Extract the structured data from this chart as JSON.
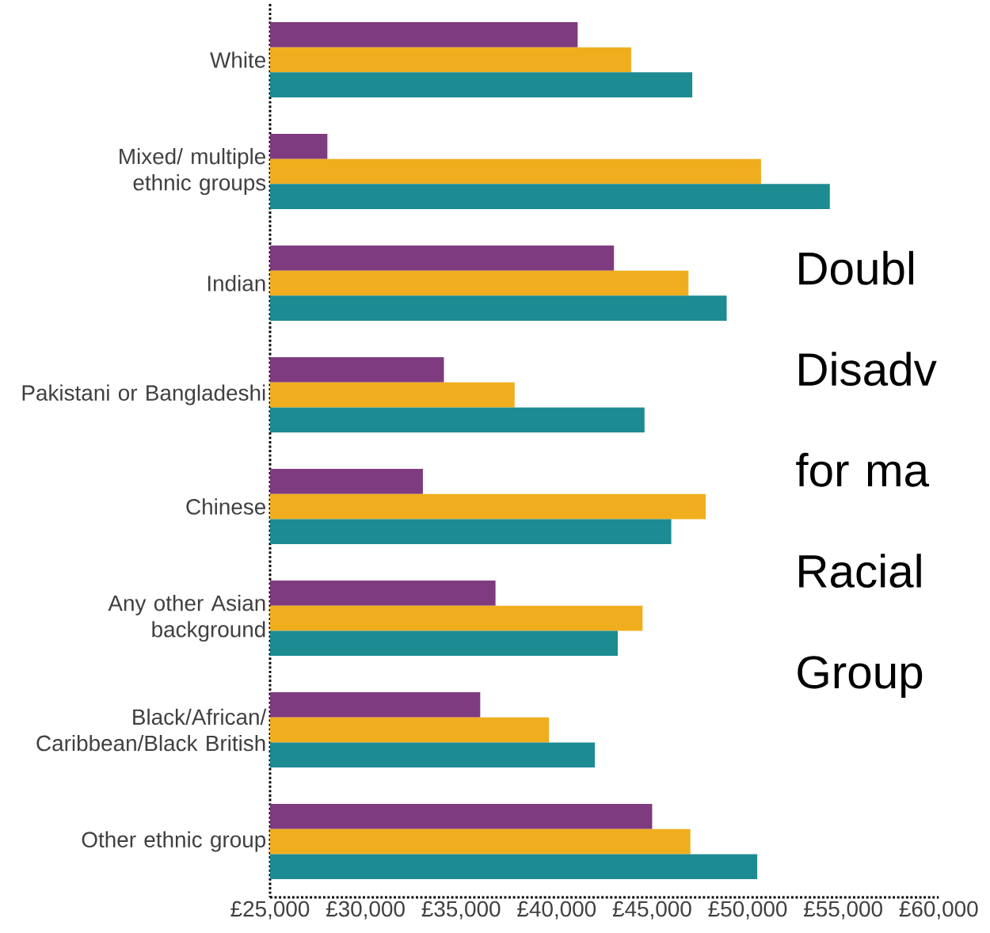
{
  "chart_data": {
    "type": "bar",
    "orientation": "horizontal",
    "categories": [
      "White",
      "Mixed/ multiple ethnic groups",
      "Indian",
      "Pakistani or Bangladeshi",
      "Chinese",
      "Any other Asian background",
      "Black/African/ Caribbean/Black British",
      "Other ethnic group"
    ],
    "series": [
      {
        "color": "#7f3b7f",
        "values": [
          41100,
          28000,
          43000,
          34100,
          33000,
          36800,
          36000,
          45000
        ]
      },
      {
        "color": "#f0ae1f",
        "values": [
          43900,
          50700,
          46900,
          37800,
          47800,
          44500,
          39600,
          47000
        ]
      },
      {
        "color": "#1c8b92",
        "values": [
          47100,
          54300,
          48900,
          44600,
          46000,
          43200,
          42000,
          50500
        ]
      }
    ],
    "xlim": [
      25000,
      60000
    ],
    "xticks": [
      {
        "value": 25000,
        "label": "£25,000"
      },
      {
        "value": 30000,
        "label": "£30,000"
      },
      {
        "value": 35000,
        "label": "£35,000"
      },
      {
        "value": 40000,
        "label": "£40,000"
      },
      {
        "value": 45000,
        "label": "£45,000"
      },
      {
        "value": 50000,
        "label": "£50,000"
      },
      {
        "value": 55000,
        "label": "£55,000"
      },
      {
        "value": 60000,
        "label": "£60,000"
      }
    ],
    "annotations": [
      "Doubl Disadv for ma Racial Group"
    ]
  }
}
